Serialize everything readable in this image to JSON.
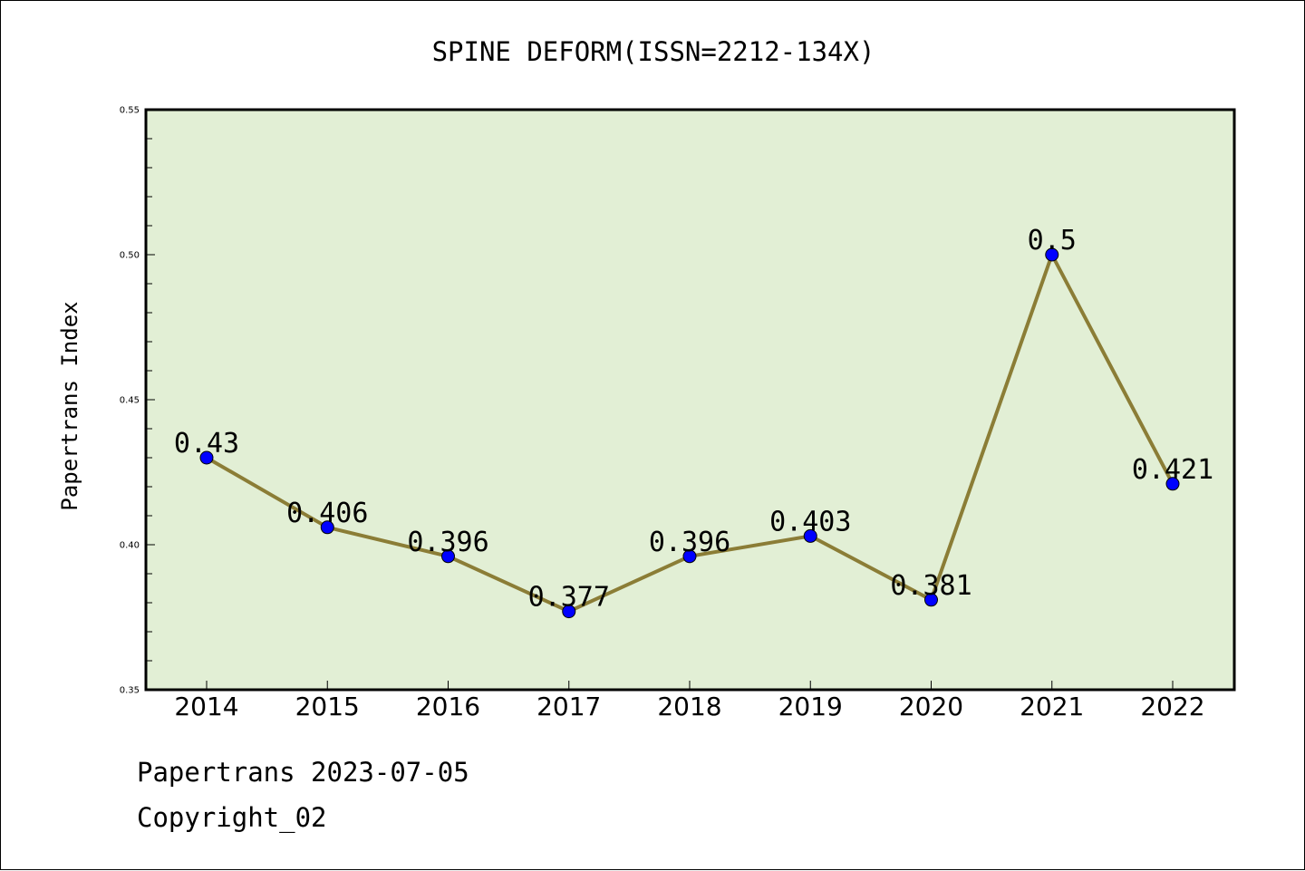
{
  "chart_data": {
    "type": "line",
    "title": "SPINE DEFORM(ISSN=2212-134X)",
    "xlabel": "",
    "ylabel": "Papertrans Index",
    "categories": [
      "2014",
      "2015",
      "2016",
      "2017",
      "2018",
      "2019",
      "2020",
      "2021",
      "2022"
    ],
    "series": [
      {
        "values": [
          0.43,
          0.406,
          0.396,
          0.377,
          0.396,
          0.403,
          0.381,
          0.5,
          0.421
        ],
        "labels": [
          "0.43",
          "0.406",
          "0.396",
          "0.377",
          "0.396",
          "0.403",
          "0.381",
          "0.5",
          "0.421"
        ]
      }
    ],
    "ylim": [
      0.35,
      0.55
    ],
    "yticks": [
      "0.35",
      "0.40",
      "0.45",
      "0.50",
      "0.55"
    ],
    "grid": false,
    "colors": {
      "plot_background": "#e2efd5",
      "line": "#8b7d36",
      "marker": "#0000ff"
    }
  },
  "footer": {
    "line1": "Papertrans 2023-07-05",
    "line2": "Copyright_02"
  }
}
